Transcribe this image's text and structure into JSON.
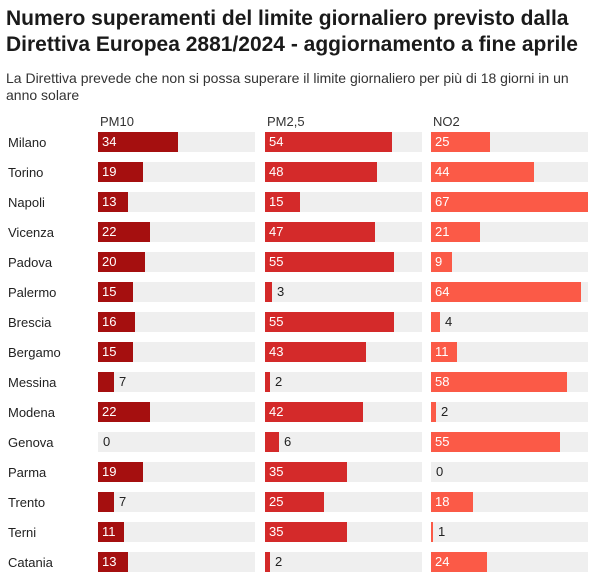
{
  "title": "Numero superamenti del limite giornaliero previsto dalla Direttiva Europea 2881/2024 - aggiornamento a fine aprile",
  "subtitle": "La Direttiva prevede che non si possa superare il limite giornaliero per più di 18 giorni in un anno solare",
  "chart_data": {
    "type": "bar",
    "orientation": "horizontal",
    "layout": "small-multiples",
    "max": 67,
    "categories": [
      "Milano",
      "Torino",
      "Napoli",
      "Vicenza",
      "Padova",
      "Palermo",
      "Brescia",
      "Bergamo",
      "Messina",
      "Modena",
      "Genova",
      "Parma",
      "Trento",
      "Terni",
      "Catania"
    ],
    "series": [
      {
        "name": "PM10",
        "color": "#a50f0f",
        "values": [
          34,
          19,
          13,
          22,
          20,
          15,
          16,
          15,
          7,
          22,
          0,
          19,
          7,
          11,
          13
        ]
      },
      {
        "name": "PM2,5",
        "color": "#d42a2a",
        "values": [
          54,
          48,
          15,
          47,
          55,
          3,
          55,
          43,
          2,
          42,
          6,
          35,
          25,
          35,
          2
        ]
      },
      {
        "name": "NO2",
        "color": "#fb5a47",
        "values": [
          25,
          44,
          67,
          21,
          9,
          64,
          4,
          11,
          58,
          2,
          55,
          0,
          18,
          1,
          24
        ]
      }
    ]
  }
}
